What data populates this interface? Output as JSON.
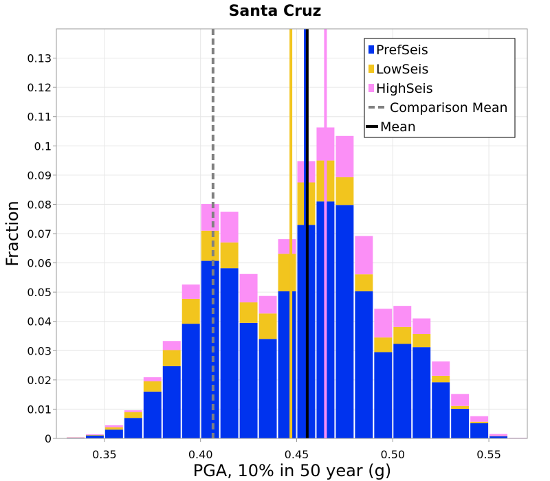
{
  "chart_data": {
    "type": "bar",
    "stacked": true,
    "title": "Santa Cruz",
    "xlabel": "PGA, 10% in 50 year (g)",
    "ylabel": "Fraction",
    "xlim": [
      0.325,
      0.57
    ],
    "ylim": [
      0,
      0.14
    ],
    "bin_width": 0.01,
    "x_ticks": [
      {
        "value": 0.35,
        "label": "0.35"
      },
      {
        "value": 0.4,
        "label": "0.40"
      },
      {
        "value": 0.45,
        "label": "0.45"
      },
      {
        "value": 0.5,
        "label": "0.50"
      },
      {
        "value": 0.55,
        "label": "0.55"
      }
    ],
    "y_ticks": [
      {
        "value": 0,
        "label": "0"
      },
      {
        "value": 0.01,
        "label": "0.01"
      },
      {
        "value": 0.02,
        "label": "0.02"
      },
      {
        "value": 0.03,
        "label": "0.03"
      },
      {
        "value": 0.04,
        "label": "0.04"
      },
      {
        "value": 0.05,
        "label": "0.05"
      },
      {
        "value": 0.06,
        "label": "0.06"
      },
      {
        "value": 0.07,
        "label": "0.07"
      },
      {
        "value": 0.08,
        "label": "0.08"
      },
      {
        "value": 0.09,
        "label": "0.09"
      },
      {
        "value": 0.1,
        "label": "0.1"
      },
      {
        "value": 0.11,
        "label": "0.11"
      },
      {
        "value": 0.12,
        "label": "0.12"
      },
      {
        "value": 0.13,
        "label": "0.13"
      }
    ],
    "bin_centers": [
      0.335,
      0.345,
      0.355,
      0.365,
      0.375,
      0.385,
      0.395,
      0.405,
      0.415,
      0.425,
      0.435,
      0.445,
      0.455,
      0.465,
      0.475,
      0.485,
      0.495,
      0.505,
      0.515,
      0.525,
      0.535,
      0.545,
      0.555,
      0.565
    ],
    "series": [
      {
        "name": "PrefSeis",
        "color": "#0033ee",
        "values": [
          0.0002,
          0.001,
          0.003,
          0.007,
          0.016,
          0.0247,
          0.0392,
          0.0607,
          0.0582,
          0.0395,
          0.034,
          0.0503,
          0.073,
          0.081,
          0.0798,
          0.0503,
          0.0295,
          0.0323,
          0.0312,
          0.0192,
          0.0101,
          0.0052,
          0.0007,
          0.0001
        ]
      },
      {
        "name": "LowSeis",
        "color": "#f2c51e",
        "values": [
          0.0001,
          0.0002,
          0.0008,
          0.002,
          0.0035,
          0.0055,
          0.0085,
          0.0103,
          0.0088,
          0.007,
          0.0087,
          0.0128,
          0.0145,
          0.014,
          0.0095,
          0.0058,
          0.005,
          0.0058,
          0.0045,
          0.0022,
          0.001,
          0.0005,
          0.0001,
          0
        ]
      },
      {
        "name": "HighSeis",
        "color": "#fb8ff6",
        "values": [
          0.0001,
          0.0002,
          0.0007,
          0.0006,
          0.0014,
          0.0031,
          0.0049,
          0.0091,
          0.0105,
          0.0097,
          0.006,
          0.005,
          0.0073,
          0.0113,
          0.0141,
          0.0131,
          0.0098,
          0.0072,
          0.0053,
          0.0049,
          0.0041,
          0.0019,
          0.0007,
          0.0001
        ]
      }
    ],
    "vertical_lines": [
      {
        "name": "Comparison Mean",
        "x": 0.4065,
        "color": "#808080",
        "style": "dashed"
      },
      {
        "name": "LowSeis mean",
        "x": 0.447,
        "color": "#f2c51e",
        "style": "solid"
      },
      {
        "name": "HighSeis mean",
        "x": 0.465,
        "color": "#fb8ff6",
        "style": "solid"
      },
      {
        "name": "PrefSeis mean",
        "x": 0.4545,
        "color": "#0033ee",
        "style": "solid"
      },
      {
        "name": "Mean",
        "x": 0.4555,
        "color": "#000000",
        "style": "solid"
      }
    ],
    "legend": {
      "position": "top-right",
      "entries": [
        {
          "label": "PrefSeis",
          "kind": "box",
          "color": "#0033ee"
        },
        {
          "label": "LowSeis",
          "kind": "box",
          "color": "#f2c51e"
        },
        {
          "label": "HighSeis",
          "kind": "box",
          "color": "#fb8ff6"
        },
        {
          "label": "Comparison Mean",
          "kind": "dashed",
          "color": "#808080"
        },
        {
          "label": "Mean",
          "kind": "line",
          "color": "#000000"
        }
      ]
    }
  }
}
